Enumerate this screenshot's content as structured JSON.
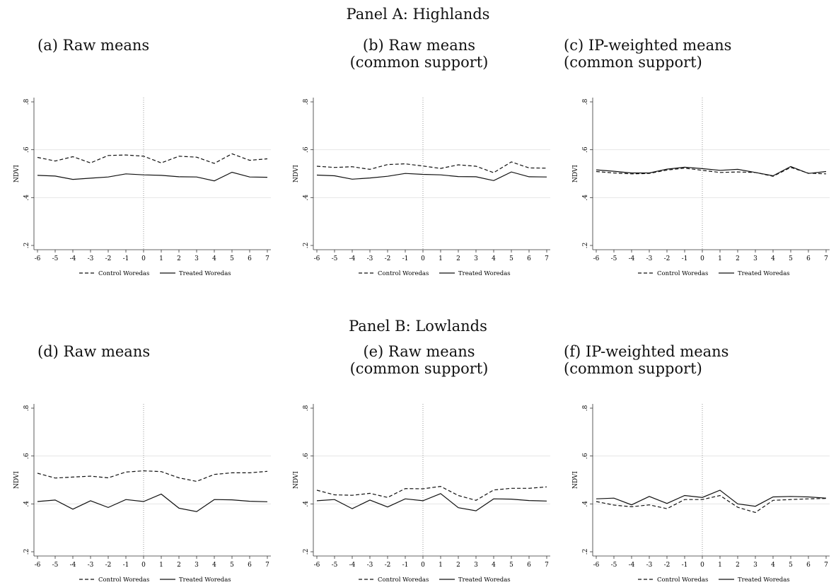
{
  "panels": [
    {
      "title": "Panel A: Highlands"
    },
    {
      "title": "Panel B: Lowlands"
    }
  ],
  "subtitles": [
    {
      "line1": "(a) Raw means",
      "line2": ""
    },
    {
      "line1": "(b) Raw means",
      "line2": "(common support)"
    },
    {
      "line1": "(c) IP-weighted means",
      "line2": "(common support)"
    },
    {
      "line1": "(d) Raw means",
      "line2": ""
    },
    {
      "line1": "(e) Raw means",
      "line2": "(common support)"
    },
    {
      "line1": "(f) IP-weighted means",
      "line2": "(common support)"
    }
  ],
  "chart_data": [
    {
      "type": "line",
      "x": [
        -6,
        -5,
        -4,
        -3,
        -2,
        -1,
        0,
        1,
        2,
        3,
        4,
        5,
        6,
        7
      ],
      "ylabel": "NDVI",
      "ylim": [
        0.2,
        0.8
      ],
      "yticks": [
        ".2",
        ".4",
        ".6",
        ".8"
      ],
      "vline": 0,
      "legend": "bottom",
      "series": [
        {
          "name": "Control Woredas",
          "style": "dashed",
          "values": [
            0.568,
            0.553,
            0.571,
            0.545,
            0.576,
            0.578,
            0.573,
            0.545,
            0.573,
            0.569,
            0.543,
            0.583,
            0.556,
            0.562
          ]
        },
        {
          "name": "Treated Woredas",
          "style": "solid",
          "values": [
            0.493,
            0.49,
            0.476,
            0.481,
            0.486,
            0.499,
            0.495,
            0.493,
            0.487,
            0.486,
            0.47,
            0.506,
            0.486,
            0.485
          ]
        }
      ]
    },
    {
      "type": "line",
      "x": [
        -6,
        -5,
        -4,
        -3,
        -2,
        -1,
        0,
        1,
        2,
        3,
        4,
        5,
        6,
        7
      ],
      "ylabel": "NDVI",
      "ylim": [
        0.2,
        0.8
      ],
      "yticks": [
        ".2",
        ".4",
        ".6",
        ".8"
      ],
      "vline": 0,
      "legend": "bottom",
      "series": [
        {
          "name": "Control Woredas",
          "style": "dashed",
          "values": [
            0.531,
            0.526,
            0.529,
            0.518,
            0.538,
            0.541,
            0.532,
            0.522,
            0.537,
            0.531,
            0.504,
            0.549,
            0.524,
            0.523
          ]
        },
        {
          "name": "Treated Woredas",
          "style": "solid",
          "values": [
            0.494,
            0.491,
            0.477,
            0.482,
            0.489,
            0.501,
            0.497,
            0.495,
            0.488,
            0.487,
            0.471,
            0.507,
            0.487,
            0.486
          ]
        }
      ]
    },
    {
      "type": "line",
      "x": [
        -6,
        -5,
        -4,
        -3,
        -2,
        -1,
        0,
        1,
        2,
        3,
        4,
        5,
        6,
        7
      ],
      "ylabel": "NDVI",
      "ylim": [
        0.2,
        0.8
      ],
      "yticks": [
        ".2",
        ".4",
        ".6",
        ".8"
      ],
      "vline": 0,
      "legend": "bottom",
      "series": [
        {
          "name": "Control Woredas",
          "style": "dashed",
          "values": [
            0.509,
            0.503,
            0.499,
            0.501,
            0.515,
            0.523,
            0.514,
            0.505,
            0.507,
            0.505,
            0.489,
            0.526,
            0.502,
            0.499
          ]
        },
        {
          "name": "Treated Woredas",
          "style": "solid",
          "values": [
            0.516,
            0.51,
            0.503,
            0.503,
            0.519,
            0.527,
            0.521,
            0.514,
            0.518,
            0.505,
            0.491,
            0.53,
            0.501,
            0.509
          ]
        }
      ]
    },
    {
      "type": "line",
      "x": [
        -6,
        -5,
        -4,
        -3,
        -2,
        -1,
        0,
        1,
        2,
        3,
        4,
        5,
        6,
        7
      ],
      "ylabel": "NDVI",
      "ylim": [
        0.2,
        0.8
      ],
      "yticks": [
        ".2",
        ".4",
        ".6",
        ".8"
      ],
      "vline": 0,
      "legend": "bottom",
      "series": [
        {
          "name": "Control Woredas",
          "style": "dashed",
          "values": [
            0.528,
            0.508,
            0.512,
            0.516,
            0.509,
            0.533,
            0.538,
            0.535,
            0.509,
            0.494,
            0.523,
            0.53,
            0.53,
            0.536
          ]
        },
        {
          "name": "Treated Woredas",
          "style": "solid",
          "values": [
            0.41,
            0.416,
            0.378,
            0.413,
            0.385,
            0.418,
            0.41,
            0.441,
            0.382,
            0.368,
            0.418,
            0.417,
            0.411,
            0.409
          ]
        }
      ]
    },
    {
      "type": "line",
      "x": [
        -6,
        -5,
        -4,
        -3,
        -2,
        -1,
        0,
        1,
        2,
        3,
        4,
        5,
        6,
        7
      ],
      "ylabel": "NDVI",
      "ylim": [
        0.2,
        0.8
      ],
      "yticks": [
        ".2",
        ".4",
        ".6",
        ".8"
      ],
      "vline": 0,
      "legend": "bottom",
      "series": [
        {
          "name": "Control Woredas",
          "style": "dashed",
          "values": [
            0.457,
            0.438,
            0.436,
            0.444,
            0.427,
            0.464,
            0.463,
            0.473,
            0.435,
            0.415,
            0.458,
            0.465,
            0.465,
            0.471
          ]
        },
        {
          "name": "Treated Woredas",
          "style": "solid",
          "values": [
            0.413,
            0.418,
            0.38,
            0.416,
            0.387,
            0.421,
            0.413,
            0.443,
            0.384,
            0.371,
            0.421,
            0.42,
            0.414,
            0.412
          ]
        }
      ]
    },
    {
      "type": "line",
      "x": [
        -6,
        -5,
        -4,
        -3,
        -2,
        -1,
        0,
        1,
        2,
        3,
        4,
        5,
        6,
        7
      ],
      "ylabel": "NDVI",
      "ylim": [
        0.2,
        0.8
      ],
      "yticks": [
        ".2",
        ".4",
        ".6",
        ".8"
      ],
      "vline": 0,
      "legend": "bottom",
      "series": [
        {
          "name": "Control Woredas",
          "style": "dashed",
          "values": [
            0.41,
            0.395,
            0.388,
            0.396,
            0.38,
            0.418,
            0.418,
            0.435,
            0.386,
            0.364,
            0.415,
            0.418,
            0.421,
            0.423
          ]
        },
        {
          "name": "Treated Woredas",
          "style": "solid",
          "values": [
            0.421,
            0.424,
            0.396,
            0.431,
            0.402,
            0.435,
            0.427,
            0.457,
            0.4,
            0.39,
            0.429,
            0.431,
            0.429,
            0.424
          ]
        }
      ]
    }
  ]
}
